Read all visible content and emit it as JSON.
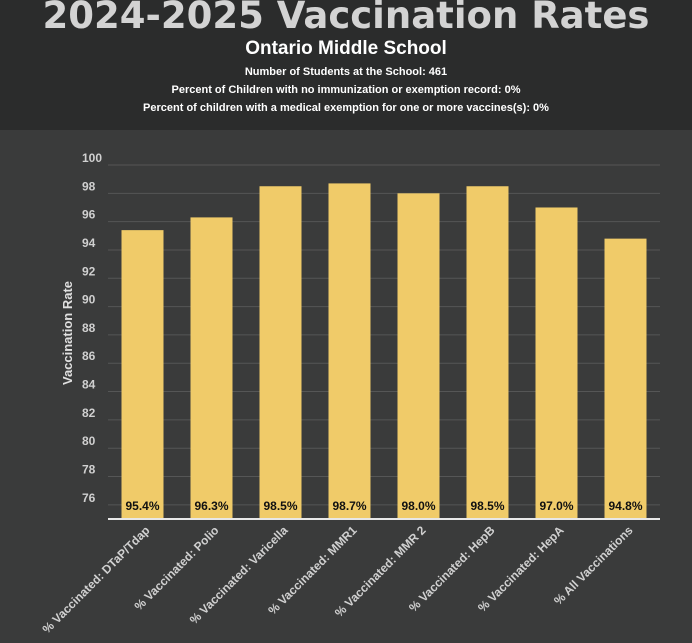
{
  "header": {
    "title": "2024-2025 Vaccination Rates",
    "subtitle": "Ontario Middle School",
    "lines": [
      "Number of Students at the School: 461",
      "Percent of Children with no immunization or exemption record: 0%",
      "Percent of children with a medical exemption for one or more vaccines(s): 0%"
    ]
  },
  "colors": {
    "bar": "#f0cb69",
    "header_bg": "#2b2c2c",
    "plot_bg": "#3a3b3b",
    "grid": "#555656",
    "axis": "#e8e8e8"
  },
  "chart_data": {
    "type": "bar",
    "title": "2024-2025 Vaccination Rates",
    "subtitle": "Ontario Middle School",
    "xlabel": "",
    "ylabel": "Vaccination Rate",
    "ylim": [
      75,
      100
    ],
    "yticks": [
      76,
      78,
      80,
      82,
      84,
      86,
      88,
      90,
      92,
      94,
      96,
      98,
      100
    ],
    "grid": true,
    "legend": "none",
    "categories": [
      "% Vaccinated: DTaP/Tdap",
      "% Vaccinated: Polio",
      "% Vaccinated: Varicella",
      "% Vaccinated: MMR1",
      "% Vaccinated: MMR 2",
      "% Vaccinated: HepB",
      "% Vaccinated: HepA",
      "% All Vaccinations"
    ],
    "values": [
      95.4,
      96.3,
      98.5,
      98.7,
      98.0,
      98.5,
      97.0,
      94.8
    ],
    "data_labels": [
      "95.4%",
      "96.3%",
      "98.5%",
      "98.7%",
      "98.0%",
      "98.5%",
      "97.0%",
      "94.8%"
    ]
  }
}
